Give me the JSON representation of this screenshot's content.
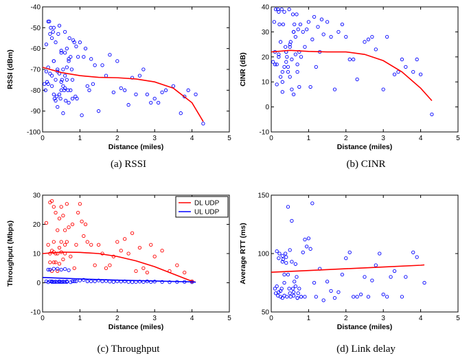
{
  "chart_data": [
    {
      "id": "rssi",
      "type": "scatter",
      "caption": "(a)  RSSI",
      "xlabel": "Distance (miles)",
      "ylabel": "RSSI (dBm)",
      "xlim": [
        0,
        5
      ],
      "ylim": [
        -100,
        -40
      ],
      "xticks": [
        0,
        1,
        2,
        3,
        4,
        5
      ],
      "yticks": [
        -100,
        -90,
        -80,
        -70,
        -60,
        -50,
        -40
      ],
      "grid": false,
      "series": [
        {
          "kind": "points",
          "color": "#0000ff",
          "x": [
            0.05,
            0.08,
            0.1,
            0.12,
            0.15,
            0.15,
            0.18,
            0.2,
            0.22,
            0.25,
            0.25,
            0.28,
            0.3,
            0.3,
            0.32,
            0.35,
            0.35,
            0.38,
            0.4,
            0.4,
            0.42,
            0.45,
            0.45,
            0.48,
            0.5,
            0.5,
            0.52,
            0.55,
            0.55,
            0.58,
            0.6,
            0.6,
            0.62,
            0.65,
            0.65,
            0.68,
            0.7,
            0.7,
            0.72,
            0.75,
            0.75,
            0.78,
            0.8,
            0.8,
            0.82,
            0.85,
            0.88,
            0.9,
            0.92,
            0.95,
            1.0,
            1.05,
            1.1,
            1.15,
            1.2,
            1.25,
            1.3,
            1.35,
            1.4,
            1.5,
            1.6,
            1.7,
            1.8,
            1.9,
            2.0,
            2.1,
            2.2,
            2.3,
            2.4,
            2.5,
            2.6,
            2.7,
            2.8,
            2.9,
            3.0,
            3.1,
            3.2,
            3.3,
            3.5,
            3.7,
            3.8,
            3.9,
            4.1,
            4.3,
            0.2,
            0.3,
            0.4,
            0.5,
            0.6,
            0.7,
            0.35,
            0.45,
            0.55,
            0.65,
            0.25,
            0.15,
            0.1,
            0.5,
            0.6,
            0.3
          ],
          "y": [
            -77,
            -80,
            -58,
            -76,
            -47,
            -77,
            -47,
            -53,
            -50,
            -55,
            -78,
            -52,
            -50,
            -66,
            -84,
            -57,
            -75,
            -83,
            -70,
            -88,
            -53,
            -49,
            -72,
            -84,
            -62,
            -80,
            -75,
            -91,
            -70,
            -80,
            -73,
            -52,
            -85,
            -60,
            -75,
            -80,
            -66,
            -86,
            -55,
            -64,
            -80,
            -70,
            -84,
            -75,
            -56,
            -57,
            -83,
            -59,
            -84,
            -64,
            -57,
            -92,
            -64,
            -60,
            -78,
            -80,
            -65,
            -77,
            -68,
            -90,
            -68,
            -73,
            -63,
            -81,
            -66,
            -79,
            -80,
            -87,
            -74,
            -82,
            -73,
            -70,
            -82,
            -86,
            -84,
            -86,
            -81,
            -80,
            -78,
            -91,
            -83,
            -80,
            -82,
            -96,
            -72,
            -66,
            -71,
            -61,
            -62,
            -65,
            -85,
            -82,
            -78,
            -69,
            -73,
            -69,
            -71,
            -76,
            -79,
            -82
          ]
        },
        {
          "kind": "fit",
          "color": "#ff0000",
          "x": [
            0,
            0.5,
            1,
            1.5,
            2,
            2.5,
            3,
            3.5,
            4,
            4.3
          ],
          "y": [
            -69,
            -71.5,
            -73,
            -73.8,
            -74,
            -74.6,
            -76,
            -79,
            -86,
            -95
          ]
        }
      ]
    },
    {
      "id": "cinr",
      "type": "scatter",
      "caption": "(b)  CINR",
      "xlabel": "Distance (miles)",
      "ylabel": "CINR (dB)",
      "xlim": [
        0,
        5
      ],
      "ylim": [
        -10,
        40
      ],
      "xticks": [
        0,
        1,
        2,
        3,
        4,
        5
      ],
      "yticks": [
        -10,
        0,
        10,
        20,
        30,
        40
      ],
      "grid": false,
      "series": [
        {
          "kind": "points",
          "color": "#0000ff",
          "x": [
            0.05,
            0.08,
            0.1,
            0.12,
            0.15,
            0.18,
            0.2,
            0.22,
            0.25,
            0.28,
            0.3,
            0.32,
            0.35,
            0.38,
            0.4,
            0.42,
            0.45,
            0.48,
            0.5,
            0.52,
            0.55,
            0.58,
            0.6,
            0.62,
            0.65,
            0.68,
            0.7,
            0.72,
            0.75,
            0.78,
            0.8,
            0.85,
            0.9,
            0.95,
            1.0,
            1.05,
            1.1,
            1.15,
            1.2,
            1.25,
            1.3,
            1.35,
            1.4,
            1.5,
            1.6,
            1.7,
            1.8,
            1.9,
            2.0,
            2.1,
            2.2,
            2.3,
            2.5,
            2.6,
            2.7,
            2.8,
            3.0,
            3.1,
            3.3,
            3.4,
            3.5,
            3.6,
            3.8,
            3.9,
            4.0,
            4.3,
            0.1,
            0.2,
            0.3,
            0.4,
            0.5,
            0.6,
            0.7,
            0.15,
            0.25,
            0.35,
            0.45,
            0.55,
            0.65,
            0.75,
            0.3,
            0.4,
            0.5,
            0.2,
            0.6
          ],
          "y": [
            18,
            34,
            17,
            39,
            17,
            39,
            38,
            33,
            26,
            39,
            10,
            33,
            38,
            24,
            22,
            20,
            16,
            39,
            12,
            26,
            7,
            37,
            5,
            33,
            28,
            37,
            14,
            31,
            22,
            33,
            20,
            30,
            24,
            31,
            34,
            8,
            27,
            36,
            16,
            32,
            22,
            35,
            29,
            34,
            28,
            7,
            30,
            33,
            28,
            19,
            19,
            11,
            26,
            27,
            28,
            23,
            7,
            28,
            13,
            14,
            19,
            16,
            14,
            19,
            13,
            -3,
            22,
            20,
            14,
            22,
            24,
            30,
            17,
            9,
            12,
            16,
            14,
            19,
            21,
            8,
            6,
            18,
            25,
            21,
            30
          ]
        },
        {
          "kind": "fit",
          "color": "#ff0000",
          "x": [
            0,
            0.5,
            1,
            1.5,
            2,
            2.5,
            3,
            3.5,
            4,
            4.3
          ],
          "y": [
            22,
            22.6,
            22.2,
            22,
            22,
            21,
            18.5,
            14,
            7.5,
            2.5
          ]
        }
      ]
    },
    {
      "id": "throughput",
      "type": "scatter",
      "caption": "(c)  Throughput",
      "xlabel": "Distance (miles)",
      "ylabel": "Throughput (Mbps)",
      "xlim": [
        0,
        5
      ],
      "ylim": [
        -10,
        30
      ],
      "xticks": [
        0,
        1,
        2,
        3,
        4,
        5
      ],
      "yticks": [
        -10,
        0,
        10,
        20,
        30
      ],
      "grid": false,
      "legend": {
        "position": "top-right",
        "entries": [
          "DL UDP",
          "UL UDP"
        ]
      },
      "series": [
        {
          "name": "DL UDP",
          "kind": "points",
          "color": "#ff0000",
          "x": [
            0.1,
            0.15,
            0.2,
            0.2,
            0.25,
            0.25,
            0.3,
            0.3,
            0.3,
            0.35,
            0.35,
            0.4,
            0.4,
            0.45,
            0.45,
            0.5,
            0.5,
            0.55,
            0.55,
            0.6,
            0.6,
            0.65,
            0.65,
            0.7,
            0.75,
            0.8,
            0.85,
            0.9,
            0.95,
            1.0,
            1.05,
            1.1,
            1.15,
            1.2,
            1.3,
            1.4,
            1.5,
            1.6,
            1.7,
            1.8,
            1.9,
            2.0,
            2.1,
            2.2,
            2.3,
            2.4,
            2.5,
            2.6,
            2.7,
            2.8,
            2.9,
            3.0,
            3.2,
            3.4,
            3.6,
            3.8,
            4.0,
            0.2,
            0.3,
            0.4,
            0.5,
            0.6,
            0.35,
            0.45,
            0.25
          ],
          "y": [
            20.5,
            13,
            27.5,
            7,
            28,
            11,
            26,
            14,
            7,
            24,
            10,
            18,
            4,
            22,
            12,
            26,
            14,
            8,
            23,
            18,
            10,
            27,
            14,
            19,
            9,
            20,
            5,
            13,
            24,
            27,
            21,
            16,
            20,
            14,
            13,
            6,
            13,
            10,
            5,
            6,
            9,
            14,
            11,
            15,
            10,
            17,
            4,
            12,
            5,
            3.5,
            13,
            9,
            11,
            4,
            6,
            3.5,
            0.5,
            10,
            10.5,
            10,
            10.5,
            13,
            7,
            6.5,
            4
          ]
        },
        {
          "name": "UL UDP",
          "kind": "points",
          "color": "#0000ff",
          "x": [
            0.1,
            0.15,
            0.2,
            0.2,
            0.25,
            0.3,
            0.3,
            0.35,
            0.4,
            0.4,
            0.45,
            0.5,
            0.5,
            0.55,
            0.6,
            0.6,
            0.65,
            0.7,
            0.75,
            0.8,
            0.85,
            0.9,
            1.0,
            1.1,
            1.2,
            1.3,
            1.4,
            1.5,
            1.6,
            1.7,
            1.8,
            1.9,
            2.0,
            2.1,
            2.2,
            2.3,
            2.4,
            2.5,
            2.6,
            2.7,
            2.8,
            2.9,
            3.0,
            3.2,
            3.4,
            3.6,
            3.8,
            4.0,
            0.15,
            0.25,
            0.35,
            0.45,
            0.55,
            0.65,
            0.3,
            0.5
          ],
          "y": [
            0.5,
            4.5,
            0.5,
            4.5,
            0.5,
            4.8,
            0.3,
            0.4,
            4.8,
            0.3,
            0.5,
            4.5,
            0.3,
            0.4,
            4.7,
            0.3,
            0.5,
            4.3,
            0.2,
            0.5,
            0.5,
            0.5,
            0.8,
            1,
            0.5,
            0.5,
            0.5,
            0.8,
            0.5,
            0.6,
            0.4,
            0.3,
            0.5,
            0.4,
            0.5,
            0.3,
            0.2,
            0.3,
            0.4,
            0.3,
            0.5,
            0.3,
            0.4,
            0.3,
            0.2,
            0.3,
            0.3,
            0.2,
            0.2,
            0.3,
            0.3,
            0.3,
            0.3,
            0.3,
            0.3,
            0.3
          ]
        },
        {
          "kind": "fit",
          "color": "#ff0000",
          "x": [
            0,
            0.5,
            1,
            1.5,
            2,
            2.5,
            3,
            3.5,
            4,
            4.1
          ],
          "y": [
            10,
            10.5,
            10.4,
            10,
            9,
            7.5,
            5.5,
            3,
            0.5,
            0.2
          ]
        },
        {
          "kind": "fit",
          "color": "#0000ff",
          "x": [
            0,
            1,
            2,
            3,
            4,
            4.1
          ],
          "y": [
            1.8,
            1.3,
            0.9,
            0.6,
            0.3,
            0.2
          ]
        }
      ]
    },
    {
      "id": "rtt",
      "type": "scatter",
      "caption": "(d)  Link delay",
      "xlabel": "Distance (miles)",
      "ylabel": "Average RTT (ms)",
      "xlim": [
        0,
        5
      ],
      "ylim": [
        50,
        150
      ],
      "xticks": [
        0,
        1,
        2,
        3,
        4,
        5
      ],
      "yticks": [
        50,
        100,
        150
      ],
      "grid": false,
      "series": [
        {
          "kind": "points",
          "color": "#0000ff",
          "x": [
            0.1,
            0.12,
            0.15,
            0.18,
            0.2,
            0.22,
            0.25,
            0.28,
            0.3,
            0.3,
            0.32,
            0.35,
            0.35,
            0.38,
            0.4,
            0.42,
            0.45,
            0.48,
            0.5,
            0.52,
            0.55,
            0.58,
            0.6,
            0.62,
            0.65,
            0.68,
            0.7,
            0.72,
            0.75,
            0.8,
            0.85,
            0.9,
            0.95,
            1.0,
            1.05,
            1.1,
            1.15,
            1.2,
            1.3,
            1.4,
            1.5,
            1.6,
            1.7,
            1.8,
            1.9,
            2.0,
            2.1,
            2.2,
            2.3,
            2.4,
            2.5,
            2.6,
            2.7,
            2.8,
            2.9,
            3.0,
            3.1,
            3.2,
            3.3,
            3.5,
            3.6,
            3.8,
            3.9,
            4.1,
            0.15,
            0.25,
            0.35,
            0.45,
            0.55,
            0.65,
            0.2,
            0.3,
            0.4,
            0.5,
            0.6,
            0.7,
            0.8,
            0.9
          ],
          "y": [
            70,
            66,
            102,
            64,
            67,
            100,
            63,
            70,
            98,
            62,
            95,
            82,
            64,
            100,
            92,
            63,
            140,
            70,
            103,
            63,
            128,
            70,
            64,
            76,
            72,
            80,
            62,
            66,
            70,
            63,
            101,
            112,
            106,
            113,
            104,
            143,
            75,
            63,
            87,
            60,
            76,
            68,
            62,
            67,
            82,
            96,
            101,
            63,
            63,
            65,
            80,
            63,
            77,
            90,
            100,
            65,
            63,
            80,
            85,
            63,
            80,
            101,
            97,
            75,
            72,
            68,
            75,
            82,
            93,
            91,
            96,
            93,
            97,
            66,
            67,
            62,
            63,
            63
          ]
        },
        {
          "kind": "fit",
          "color": "#ff0000",
          "x": [
            0,
            1,
            2,
            3,
            4,
            4.1
          ],
          "y": [
            84,
            85.5,
            87,
            88.5,
            90,
            90.3
          ]
        }
      ]
    }
  ]
}
